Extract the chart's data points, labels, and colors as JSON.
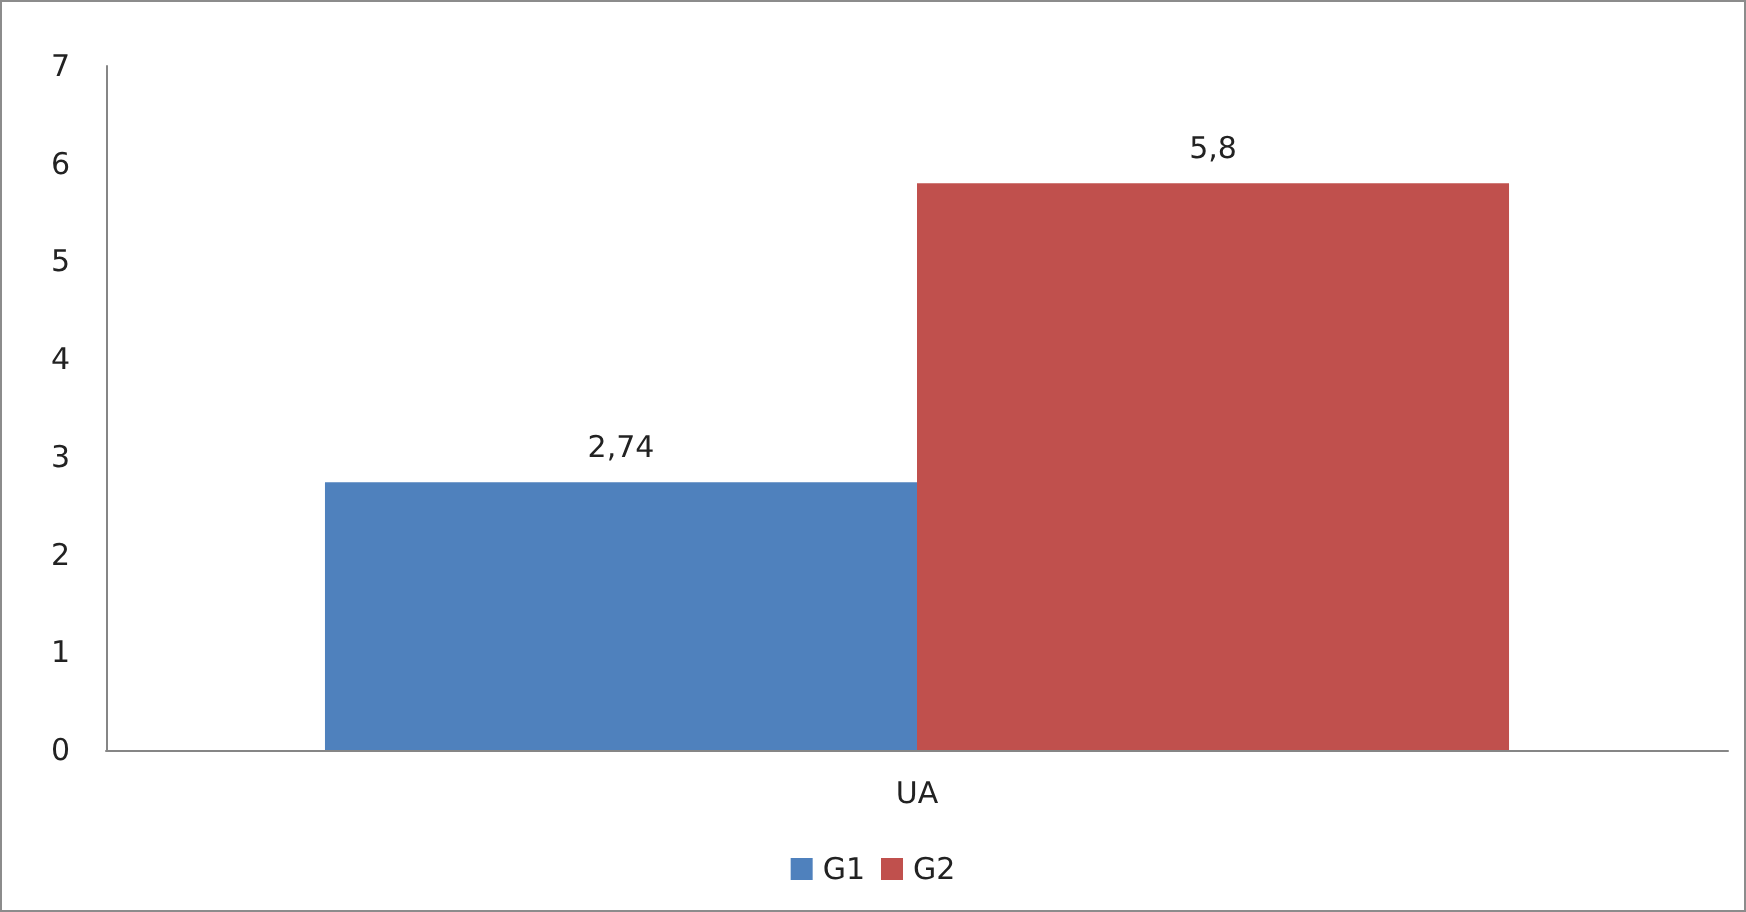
{
  "chart_data": {
    "type": "bar",
    "categories": [
      "UA"
    ],
    "series": [
      {
        "name": "G1",
        "color": "#4f81bd",
        "values": [
          2.74
        ],
        "value_labels": [
          "2,74"
        ]
      },
      {
        "name": "G2",
        "color": "#c0504d",
        "values": [
          5.8
        ],
        "value_labels": [
          "5,8"
        ]
      }
    ],
    "ylim": [
      0,
      7
    ],
    "yticks": [
      0,
      1,
      2,
      3,
      4,
      5,
      6,
      7
    ],
    "grid": false,
    "legend": "bottom"
  }
}
